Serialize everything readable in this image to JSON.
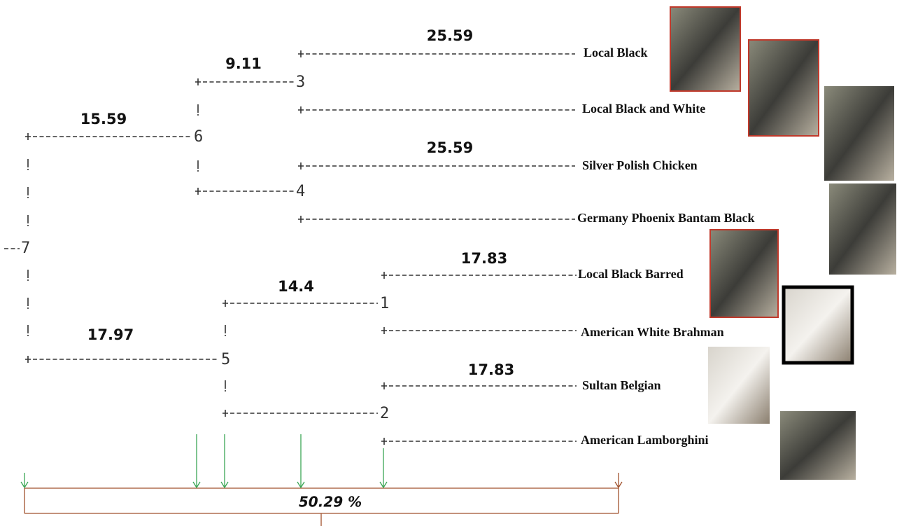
{
  "nodes": [
    "7",
    "6",
    "5",
    "3",
    "4",
    "1",
    "2"
  ],
  "distances": [
    25.59,
    9.11,
    15.59,
    25.59,
    17.83,
    14.4,
    17.97,
    17.83
  ],
  "leaves": [
    "Local Black",
    "Local Black and White",
    "Silver Polish Chicken",
    "Germany Phoenix Bantam Black",
    "Local Black Barred",
    "American White Brahman",
    "Sultan Belgian",
    "American Lamborghini"
  ],
  "total": "50.29 %"
}
